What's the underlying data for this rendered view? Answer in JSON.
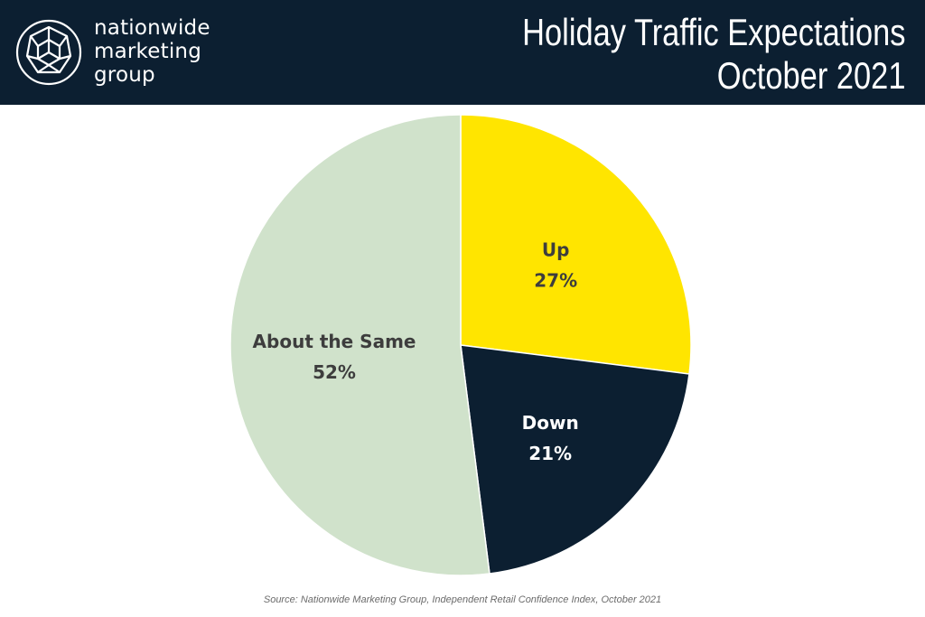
{
  "header": {
    "logo_lines": [
      "nationwide",
      "marketing",
      "group"
    ],
    "title_line1": "Holiday Traffic Expectations",
    "title_line2": "October 2021"
  },
  "chart_data": {
    "type": "pie",
    "title": "Holiday Traffic Expectations October 2021",
    "slices": [
      {
        "label": "Up",
        "value": 27,
        "value_label": "27%",
        "color": "#ffe500",
        "label_color": "#3d3d3d"
      },
      {
        "label": "Down",
        "value": 21,
        "value_label": "21%",
        "color": "#0c1f31",
        "label_color": "#ffffff"
      },
      {
        "label": "About the Same",
        "value": 52,
        "value_label": "52%",
        "color": "#d0e2cb",
        "label_color": "#3d3d3d"
      }
    ],
    "start_angle": "12 o'clock",
    "direction": "clockwise",
    "legend": "none"
  },
  "footer": {
    "source": "Source: Nationwide Marketing Group, Independent Retail Confidence Index, October 2021"
  },
  "colors": {
    "header_bg": "#0c1f31",
    "header_text": "#ffffff"
  },
  "icons": {
    "logo": "geodesic-sphere-icon"
  }
}
